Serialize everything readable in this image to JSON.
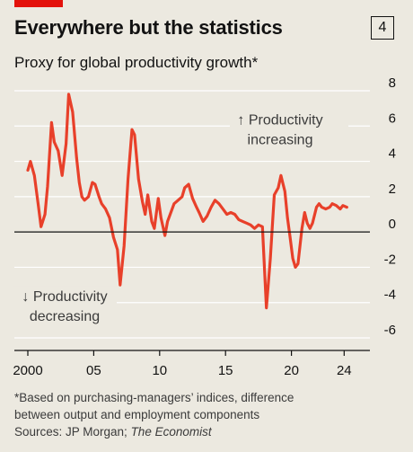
{
  "header": {
    "title": "Everywhere but the statistics",
    "chart_number": "4",
    "subtitle": "Proxy for global productivity growth*"
  },
  "footnote": {
    "line1": "*Based on purchasing-managers’ indices, difference",
    "line2": "between output and employment components",
    "sources_prefix": "Sources: JP Morgan; ",
    "sources_italic": "The Economist"
  },
  "colors": {
    "background": "#ece9e0",
    "line": "#e8402a",
    "brand_tag": "#e3120b",
    "gridline": "#ffffff",
    "zero_line": "#121212"
  },
  "chart_data": {
    "type": "line",
    "title": "Everywhere but the statistics",
    "subtitle": "Proxy for global productivity growth*",
    "xlabel": "",
    "ylabel": "",
    "xlim": [
      2000,
      2025
    ],
    "ylim": [
      -6,
      8
    ],
    "y_axis_position": "right",
    "grid": true,
    "x_ticks": [
      2000,
      2005,
      2010,
      2015,
      2020,
      2024
    ],
    "x_tick_labels": [
      "2000",
      "05",
      "10",
      "15",
      "20",
      "24"
    ],
    "y_ticks": [
      8,
      6,
      4,
      2,
      0,
      -2,
      -4,
      -6
    ],
    "y_tick_labels": [
      "8",
      "6",
      "4",
      "2",
      "0",
      "-2",
      "-4",
      "-6"
    ],
    "annotations": [
      {
        "lines": [
          "↑ Productivity",
          "increasing"
        ],
        "align": "center"
      },
      {
        "lines": [
          "↓ Productivity",
          "decreasing"
        ],
        "align": "center"
      }
    ],
    "series": [
      {
        "x": [
          2000.0,
          2000.2,
          2000.5,
          2000.8,
          2001.0,
          2001.3,
          2001.5,
          2001.8,
          2002.0,
          2002.3,
          2002.6,
          2002.9,
          2003.1,
          2003.4,
          2003.7,
          2003.9,
          2004.1,
          2004.3,
          2004.6,
          2004.9,
          2005.1,
          2005.4,
          2005.6,
          2005.9,
          2006.2,
          2006.5,
          2006.8,
          2007.0,
          2007.3,
          2007.6,
          2007.9,
          2008.1,
          2008.4,
          2008.7,
          2008.9,
          2009.1,
          2009.4,
          2009.6,
          2009.9,
          2010.1,
          2010.4,
          2010.6,
          2010.9,
          2011.1,
          2011.4,
          2011.7,
          2011.9,
          2012.2,
          2012.5,
          2012.8,
          2013.0,
          2013.3,
          2013.6,
          2013.9,
          2014.2,
          2014.5,
          2014.8,
          2015.1,
          2015.4,
          2015.7,
          2016.0,
          2016.3,
          2016.6,
          2016.9,
          2017.2,
          2017.5,
          2017.8,
          2018.1,
          2018.4,
          2018.7,
          2019.0,
          2019.2,
          2019.5,
          2019.7,
          2019.9,
          2020.1,
          2020.3,
          2020.5,
          2020.8,
          2021.0,
          2021.2,
          2021.4,
          2021.6,
          2021.9,
          2022.1,
          2022.3,
          2022.6,
          2022.9,
          2023.1,
          2023.4,
          2023.7,
          2023.9,
          2024.2
        ],
        "y": [
          3.5,
          4.0,
          3.2,
          1.5,
          0.3,
          1.0,
          2.6,
          6.2,
          5.1,
          4.6,
          3.2,
          5.0,
          7.8,
          6.8,
          4.2,
          2.8,
          2.0,
          1.8,
          2.0,
          2.8,
          2.7,
          2.0,
          1.6,
          1.3,
          0.8,
          -0.3,
          -1.0,
          -3.0,
          -0.8,
          3.0,
          5.8,
          5.5,
          3.0,
          1.7,
          1.0,
          2.1,
          0.6,
          0.2,
          1.9,
          0.8,
          -0.2,
          0.6,
          1.2,
          1.6,
          1.8,
          2.0,
          2.5,
          2.7,
          1.9,
          1.4,
          1.1,
          0.6,
          0.9,
          1.4,
          1.8,
          1.6,
          1.3,
          1.0,
          1.1,
          1.0,
          0.7,
          0.6,
          0.5,
          0.4,
          0.2,
          0.4,
          0.3,
          -4.3,
          -1.5,
          2.1,
          2.5,
          3.2,
          2.3,
          0.8,
          -0.3,
          -1.5,
          -2.0,
          -1.8,
          0.2,
          1.1,
          0.5,
          0.2,
          0.5,
          1.4,
          1.6,
          1.4,
          1.3,
          1.4,
          1.6,
          1.5,
          1.3,
          1.5,
          1.4
        ]
      }
    ]
  }
}
